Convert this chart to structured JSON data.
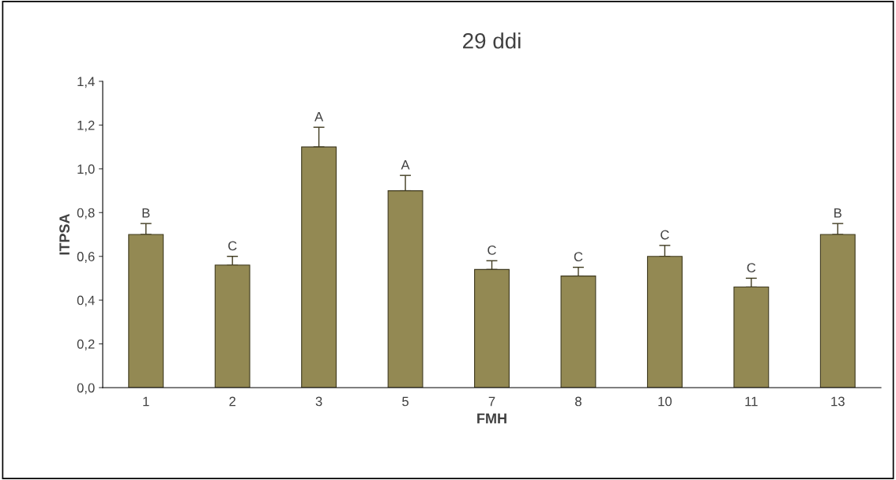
{
  "chart_data": {
    "type": "bar",
    "title": "29 ddi",
    "xlabel": "FMH",
    "ylabel": "ITPSA",
    "categories": [
      "1",
      "2",
      "3",
      "5",
      "7",
      "8",
      "10",
      "11",
      "13"
    ],
    "values": [
      0.7,
      0.56,
      1.1,
      0.9,
      0.54,
      0.51,
      0.6,
      0.46,
      0.7
    ],
    "errors": [
      [
        0.7,
        0.75
      ],
      [
        0.56,
        0.6
      ],
      [
        1.1,
        1.19
      ],
      [
        0.9,
        0.97
      ],
      [
        0.54,
        0.58
      ],
      [
        0.51,
        0.55
      ],
      [
        0.6,
        0.65
      ],
      [
        0.46,
        0.5
      ],
      [
        0.7,
        0.75
      ]
    ],
    "color": "#938953",
    "ylim": [
      0,
      1.4
    ],
    "yticks": [
      {
        "value": 0,
        "label": "0,0"
      },
      {
        "value": 0.2,
        "label": "0,2"
      },
      {
        "value": 0.4,
        "label": "0,4"
      },
      {
        "value": 0.6,
        "label": "0,6"
      },
      {
        "value": 0.8,
        "label": "0,8"
      },
      {
        "value": 1.0,
        "label": "1,0"
      },
      {
        "value": 1.2,
        "label": "1,2"
      },
      {
        "value": 1.4,
        "label": "1,4"
      }
    ],
    "grid": false,
    "legend": false,
    "annotations": [
      {
        "text": "B",
        "x": "1",
        "y": 0.75
      },
      {
        "text": "C",
        "x": "2",
        "y": 0.6
      },
      {
        "text": "A",
        "x": "3",
        "y": 1.19
      },
      {
        "text": "A",
        "x": "5",
        "y": 0.97
      },
      {
        "text": "C",
        "x": "7",
        "y": 0.58
      },
      {
        "text": "C",
        "x": "8",
        "y": 0.55
      },
      {
        "text": "C",
        "x": "10",
        "y": 0.65
      },
      {
        "text": "C",
        "x": "11",
        "y": 0.5
      },
      {
        "text": "B",
        "x": "13",
        "y": 0.75
      }
    ]
  }
}
